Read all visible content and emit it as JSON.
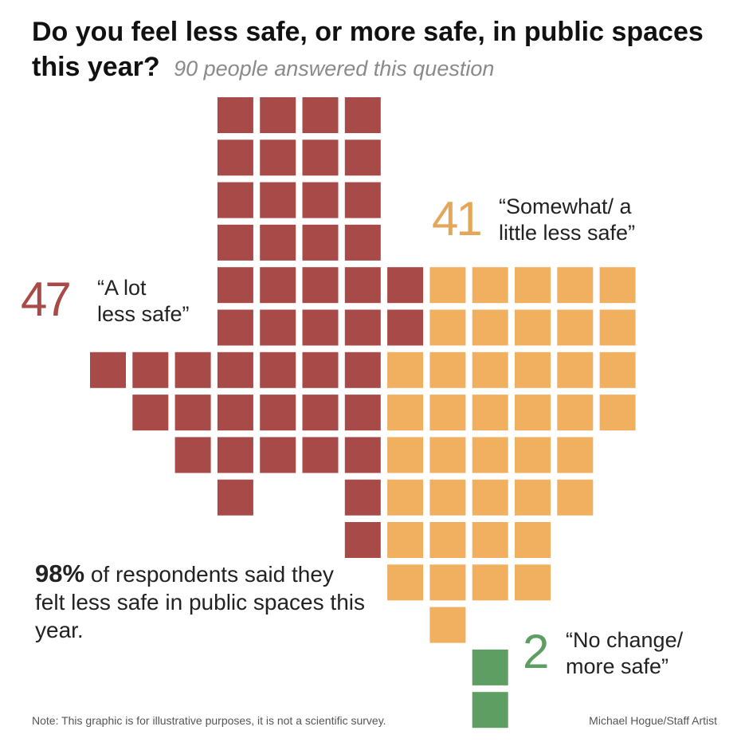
{
  "title": "Do you feel less safe, or more safe, in public spaces this year?",
  "subtitle": "90 people answered this question",
  "chart_data": {
    "type": "waffle",
    "title": "Do you feel less safe, or more safe, in public spaces this year?",
    "total": 90,
    "categories": [
      {
        "key": "lot",
        "count": 47,
        "number_label": "47",
        "label": "“A lot less safe”",
        "label_lines": [
          "“A lot",
          "less safe”"
        ],
        "color": "#a84a48"
      },
      {
        "key": "somewhat",
        "count": 41,
        "number_label": "41",
        "label": "“Somewhat/ a little less safe”",
        "label_lines": [
          "“Somewhat/ a",
          "little less safe”"
        ],
        "color": "#f0b060"
      },
      {
        "key": "nochange",
        "count": 2,
        "number_label": "2",
        "label": "“No change/ more safe”",
        "label_lines": [
          "“No change/",
          "more safe”"
        ],
        "color": "#5e9e62"
      }
    ]
  },
  "summary": {
    "percent": "98%",
    "text": "of respondents said they felt less safe in public spaces this year."
  },
  "footer": {
    "note": "Note: This graphic is for illustrative purposes, it is not a scientific survey.",
    "credit": "Michael Hogue/Staff Artist"
  }
}
